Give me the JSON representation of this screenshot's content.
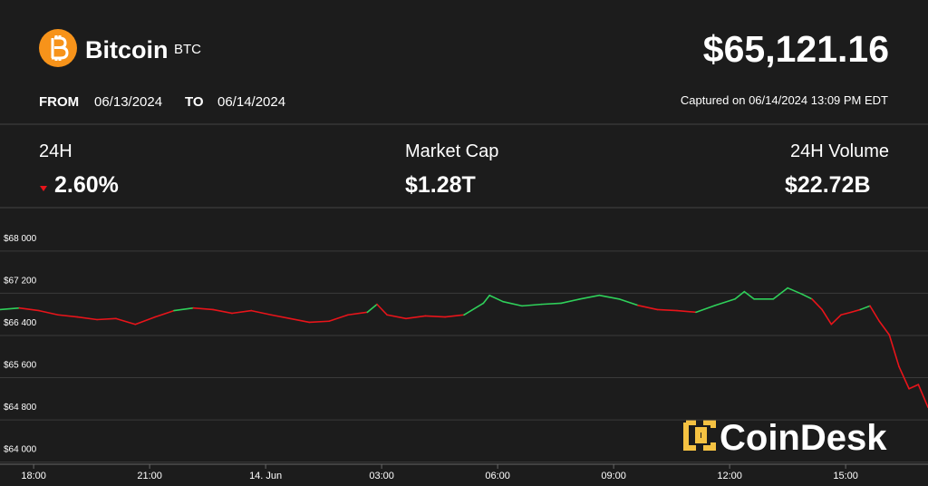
{
  "header": {
    "name": "Bitcoin",
    "ticker": "BTC",
    "price": "$65,121.16",
    "from_label": "FROM",
    "from_date": "06/13/2024",
    "to_label": "TO",
    "to_date": "06/14/2024",
    "captured": "Captured on 06/14/2024 13:09 PM EDT"
  },
  "stats": [
    {
      "label": "24H",
      "value": "2.60%"
    },
    {
      "label": "Market Cap",
      "value": "$1.28T"
    },
    {
      "label": "24H Volume",
      "value": "$22.72B"
    }
  ],
  "chart_data": {
    "type": "line",
    "watermark": "CoinDesk",
    "x": [
      17.13,
      17.63,
      18.14,
      18.63,
      19.13,
      19.64,
      20.13,
      20.63,
      21.14,
      21.63,
      22.13,
      22.64,
      23.13,
      23.63,
      24.14,
      24.63,
      25.13,
      25.64,
      26.13,
      26.63,
      26.88,
      27.14,
      27.63,
      28.13,
      28.64,
      29.13,
      29.63,
      29.79,
      30.14,
      30.63,
      31.13,
      31.64,
      32.13,
      32.63,
      33.14,
      33.63,
      34.13,
      34.64,
      35.13,
      35.63,
      36.14,
      36.38,
      36.63,
      37.13,
      37.5,
      37.88,
      38.13,
      38.39,
      38.63,
      38.88,
      39.14,
      39.38,
      39.63,
      39.87,
      40.13,
      40.38,
      40.64,
      40.88,
      41.13
    ],
    "values": [
      66890,
      66920,
      66870,
      66790,
      66750,
      66700,
      66720,
      66610,
      66750,
      66870,
      66920,
      66890,
      66820,
      66870,
      66790,
      66720,
      66650,
      66670,
      66790,
      66840,
      66990,
      66790,
      66720,
      66770,
      66750,
      66790,
      67010,
      67160,
      67040,
      66960,
      66990,
      67010,
      67090,
      67160,
      67090,
      66970,
      66890,
      66870,
      66840,
      66970,
      67090,
      67230,
      67090,
      67090,
      67300,
      67180,
      67090,
      66890,
      66610,
      66790,
      66840,
      66890,
      66960,
      66670,
      66410,
      65810,
      65390,
      65470,
      65040
    ],
    "up_color": "#2fd05a",
    "down_color": "#e8141a",
    "xlim": [
      17.13,
      41.13
    ],
    "xticks": [
      {
        "value": 18,
        "label": "18:00"
      },
      {
        "value": 21,
        "label": "21:00"
      },
      {
        "value": 24,
        "label": "14. Jun"
      },
      {
        "value": 27,
        "label": "03:00"
      },
      {
        "value": 30,
        "label": "06:00"
      },
      {
        "value": 33,
        "label": "09:00"
      },
      {
        "value": 36,
        "label": "12:00"
      },
      {
        "value": 39,
        "label": "15:00"
      }
    ],
    "ylim": [
      63960,
      68770
    ],
    "yticks": [
      {
        "value": 68000,
        "label": "$68 000"
      },
      {
        "value": 67200,
        "label": "$67 200"
      },
      {
        "value": 66400,
        "label": "$66 400"
      },
      {
        "value": 65600,
        "label": "$65 600"
      },
      {
        "value": 64800,
        "label": "$64 800"
      },
      {
        "value": 64000,
        "label": "$64 000"
      }
    ],
    "grid": true
  }
}
